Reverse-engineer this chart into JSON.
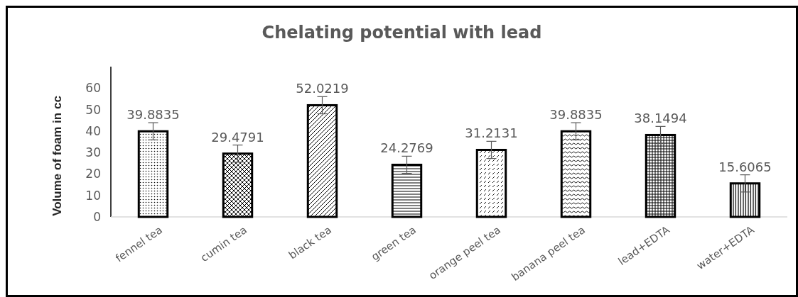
{
  "chart_data": {
    "type": "bar",
    "title": "Chelating potential with lead",
    "ylabel": "Volume of foam in cc",
    "categories": [
      "fennel tea",
      "cumin tea",
      "black tea",
      "green tea",
      "orange peel tea",
      "banana peel tea",
      "lead+EDTA",
      "water+EDTA"
    ],
    "values": [
      39.8835,
      29.4791,
      52.0219,
      24.2769,
      31.2131,
      39.8835,
      38.1494,
      15.6065
    ],
    "errors": [
      4,
      4,
      4,
      4,
      4,
      4,
      4,
      4
    ],
    "colors": [
      "#000000",
      "#000000",
      "#000000",
      "#000000",
      "#000000",
      "#000000",
      "#000000",
      "#000000"
    ],
    "ylim": [
      0,
      70
    ],
    "yticks": [
      0,
      10,
      20,
      30,
      40,
      50,
      60
    ],
    "data_labels": true,
    "grid": false
  }
}
